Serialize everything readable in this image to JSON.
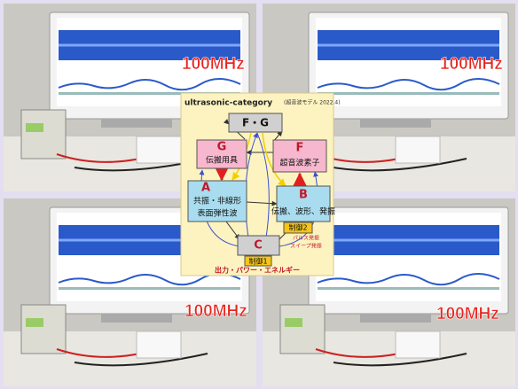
{
  "photos": [
    {
      "label": "100MHz"
    },
    {
      "label": "100MHz"
    },
    {
      "label": "100MHz"
    },
    {
      "label": "100MHz"
    }
  ],
  "diagram": {
    "title": "ultrasonic-category",
    "note": "(超音波モデル 2022.4)",
    "nodes": [
      {
        "label": "F・G"
      },
      {
        "label": "G",
        "lines": [
          "伝搬用具"
        ]
      },
      {
        "label": "F",
        "lines": [
          "超音波素子"
        ]
      },
      {
        "label": "A",
        "lines": [
          "共振・非線形",
          "表面弾性波"
        ]
      },
      {
        "label": "B",
        "lines": [
          "伝搬、波形、発振"
        ]
      },
      {
        "label": "C"
      }
    ],
    "controls": [
      {
        "label": "制御1",
        "lines": [
          "出力・パワー・エネルギー"
        ]
      },
      {
        "label": "制御2",
        "lines": [
          "パルス発振",
          "スイープ発振"
        ]
      }
    ]
  }
}
